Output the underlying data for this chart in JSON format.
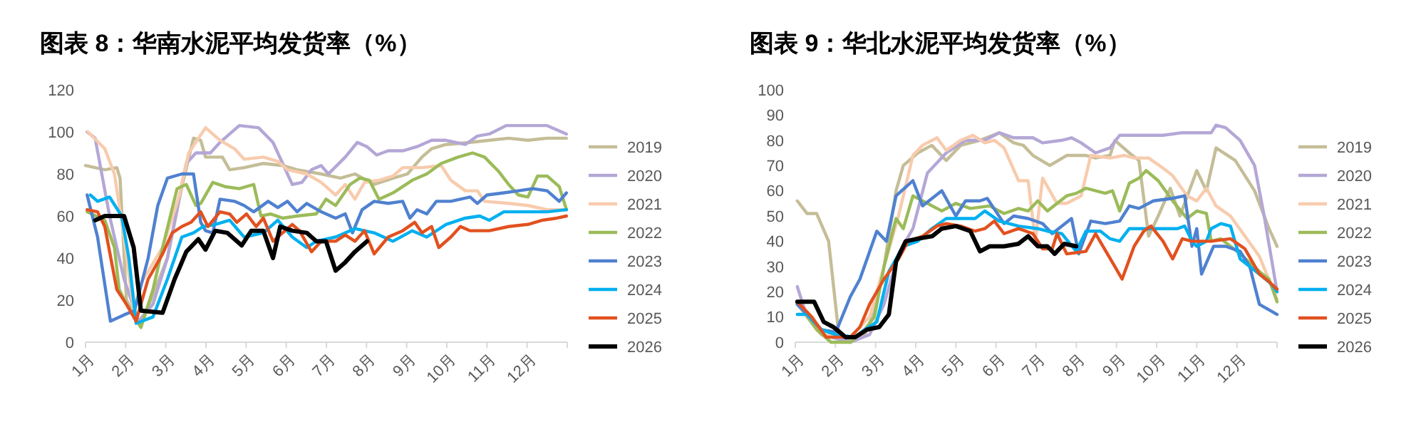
{
  "chart_data": [
    {
      "type": "line",
      "title": "图表 8：华南水泥平均发货率（%）",
      "xlim": [
        1,
        13
      ],
      "xticks": [
        {
          "value": 1,
          "label": "1月"
        },
        {
          "value": 2,
          "label": "2月"
        },
        {
          "value": 3,
          "label": "3月"
        },
        {
          "value": 4,
          "label": "4月"
        },
        {
          "value": 5,
          "label": "5月"
        },
        {
          "value": 6,
          "label": "6月"
        },
        {
          "value": 7,
          "label": "7月"
        },
        {
          "value": 8,
          "label": "8月"
        },
        {
          "value": 9,
          "label": "9月"
        },
        {
          "value": 10,
          "label": "10月"
        },
        {
          "value": 11,
          "label": "11月"
        },
        {
          "value": 12,
          "label": "12月"
        }
      ],
      "ylim": [
        0,
        120
      ],
      "yticks": [
        0,
        20,
        40,
        60,
        80,
        100,
        120
      ],
      "grid": false,
      "legend": "right",
      "marker": "none",
      "line_style": "solid",
      "series": [
        {
          "name": "2019",
          "color": "#c4bd97",
          "x": [
            1,
            1.48,
            1.78,
            1.86,
            2.02,
            2.38,
            3.04,
            3.4,
            3.69,
            3.87,
            3.99,
            4.41,
            4.59,
            4.95,
            5.43,
            5.91,
            6.27,
            6.87,
            7.35,
            7.71,
            8.19,
            8.66,
            9.02,
            9.38,
            9.62,
            9.98,
            10.58,
            11.06,
            11.54,
            12.02,
            12.5,
            12.98
          ],
          "values": [
            84,
            82,
            83,
            78,
            20,
            8,
            40,
            74,
            97,
            96,
            88,
            88,
            82,
            83,
            85,
            84,
            82,
            80,
            78,
            80,
            75,
            78,
            80,
            88,
            92,
            94,
            95,
            96,
            97,
            96,
            97,
            97
          ]
        },
        {
          "name": "2020",
          "color": "#b4a7d6",
          "x": [
            1.04,
            1.24,
            1.6,
            1.96,
            2.32,
            2.68,
            3.04,
            3.4,
            3.51,
            3.75,
            4.11,
            4.35,
            4.53,
            4.83,
            5.31,
            5.67,
            5.91,
            6.15,
            6.39,
            6.63,
            6.87,
            7.05,
            7.47,
            7.77,
            8.01,
            8.25,
            8.54,
            8.9,
            9.26,
            9.62,
            9.98,
            10.46,
            10.76,
            11.06,
            11.48,
            12.02,
            12.5,
            12.98
          ],
          "values": [
            100,
            97,
            60,
            30,
            10,
            18,
            40,
            75,
            85,
            90,
            90,
            95,
            98,
            103,
            102,
            95,
            85,
            75,
            76,
            82,
            84,
            80,
            88,
            95,
            93,
            89,
            91,
            91,
            93,
            96,
            96,
            94,
            98,
            99,
            103,
            103,
            103,
            99
          ]
        },
        {
          "name": "2021",
          "color": "#f8cbad",
          "x": [
            1.06,
            1.48,
            1.72,
            1.96,
            2.2,
            2.38,
            2.92,
            3.34,
            3.57,
            3.99,
            4.35,
            4.71,
            4.95,
            5.43,
            5.79,
            6.03,
            6.51,
            6.87,
            7.23,
            7.47,
            7.71,
            7.95,
            8.31,
            8.66,
            8.9,
            9.38,
            9.86,
            10.1,
            10.46,
            10.76,
            10.94,
            11.54,
            12.02,
            12.5,
            12.98
          ],
          "values": [
            100,
            92,
            80,
            50,
            15,
            28,
            45,
            70,
            90,
            102,
            96,
            92,
            87,
            88,
            86,
            82,
            80,
            76,
            70,
            75,
            68,
            76,
            77,
            79,
            83,
            83,
            84,
            77,
            72,
            72,
            67,
            66,
            65,
            63,
            63
          ]
        },
        {
          "name": "2022",
          "color": "#9bbb59",
          "x": [
            1.04,
            1.48,
            1.72,
            1.84,
            2.02,
            2.38,
            2.68,
            2.92,
            3.28,
            3.51,
            3.75,
            3.87,
            4.17,
            4.47,
            4.83,
            5.19,
            5.37,
            5.61,
            5.91,
            6.27,
            6.75,
            6.99,
            7.23,
            7.59,
            7.83,
            8.07,
            8.31,
            8.66,
            9.14,
            9.5,
            9.86,
            10.28,
            10.64,
            10.94,
            11.3,
            11.54,
            11.78,
            12.02,
            12.26,
            12.5,
            12.8,
            12.98
          ],
          "values": [
            62,
            58,
            45,
            25,
            18,
            7,
            25,
            45,
            73,
            75,
            65,
            66,
            76,
            74,
            73,
            75,
            60,
            61,
            59,
            60,
            61,
            68,
            65,
            75,
            78,
            77,
            68,
            71,
            77,
            80,
            85,
            88,
            90,
            88,
            81,
            75,
            70,
            69,
            79,
            79,
            74,
            63
          ]
        },
        {
          "name": "2023",
          "color": "#4f81d0",
          "x": [
            1.04,
            1.3,
            1.62,
            1.96,
            2.22,
            2.56,
            2.8,
            3.04,
            3.4,
            3.69,
            3.87,
            3.99,
            4.17,
            4.35,
            4.71,
            4.95,
            5.19,
            5.55,
            5.79,
            6.03,
            6.27,
            6.51,
            6.87,
            7.23,
            7.47,
            7.65,
            7.89,
            8.19,
            8.54,
            8.9,
            9.08,
            9.26,
            9.5,
            9.74,
            10.1,
            10.58,
            10.76,
            11,
            11.42,
            11.78,
            12.14,
            12.5,
            12.8,
            12.98
          ],
          "values": [
            70,
            50,
            10,
            13,
            15,
            40,
            65,
            78,
            80,
            80,
            57,
            53,
            52,
            68,
            67,
            65,
            62,
            67,
            64,
            67,
            62,
            66,
            62,
            59,
            61,
            52,
            63,
            67,
            66,
            67,
            59,
            63,
            61,
            67,
            67,
            69,
            66,
            70,
            71,
            72,
            73,
            72,
            67,
            71
          ]
        },
        {
          "name": "2024",
          "color": "#00b0f0",
          "x": [
            1.12,
            1.3,
            1.6,
            1.9,
            2.08,
            2.26,
            2.68,
            3.04,
            3.4,
            3.69,
            3.93,
            4.23,
            4.59,
            4.95,
            5.43,
            5.79,
            6.15,
            6.51,
            6.75,
            7.23,
            7.71,
            8.19,
            8.66,
            9.14,
            9.5,
            9.98,
            10.46,
            10.82,
            11.06,
            11.42,
            11.9,
            12.5,
            12.98
          ],
          "values": [
            70,
            67,
            69,
            60,
            40,
            9,
            12,
            30,
            50,
            52,
            55,
            56,
            58,
            50,
            52,
            58,
            50,
            45,
            48,
            50,
            54,
            52,
            48,
            53,
            50,
            56,
            59,
            60,
            58,
            62,
            62,
            62,
            63
          ]
        },
        {
          "name": "2025",
          "color": "#e2511f",
          "x": [
            1.04,
            1.3,
            1.48,
            1.78,
            2.02,
            2.26,
            2.56,
            2.92,
            3.16,
            3.4,
            3.63,
            3.87,
            4.05,
            4.35,
            4.59,
            4.77,
            5.01,
            5.25,
            5.43,
            5.67,
            5.91,
            6.15,
            6.33,
            6.63,
            6.87,
            7.23,
            7.47,
            7.71,
            7.95,
            8.19,
            8.54,
            8.9,
            9.2,
            9.38,
            9.62,
            9.8,
            10.1,
            10.34,
            10.58,
            11.06,
            11.54,
            12.02,
            12.38,
            12.74,
            12.98
          ],
          "values": [
            63,
            62,
            55,
            25,
            18,
            10,
            30,
            42,
            52,
            55,
            57,
            62,
            55,
            62,
            61,
            57,
            61,
            55,
            59,
            48,
            52,
            56,
            53,
            43,
            48,
            48,
            51,
            48,
            53,
            42,
            50,
            53,
            57,
            52,
            55,
            45,
            50,
            55,
            53,
            53,
            55,
            56,
            58,
            59,
            60
          ]
        },
        {
          "name": "2026",
          "color": "#000000",
          "x": [
            1.24,
            1.48,
            1.96,
            2.2,
            2.38,
            2.92,
            3.22,
            3.51,
            3.81,
            3.99,
            4.23,
            4.53,
            4.89,
            5.13,
            5.43,
            5.67,
            5.85,
            6.15,
            6.51,
            6.75,
            6.99,
            7.23,
            7.47,
            7.71,
            8.01
          ],
          "values": [
            58,
            60,
            60,
            45,
            15,
            14,
            30,
            43,
            49,
            44,
            53,
            52,
            46,
            53,
            53,
            40,
            55,
            53,
            52,
            48,
            48,
            34,
            38,
            43,
            48
          ]
        }
      ]
    },
    {
      "type": "line",
      "title": "图表 9：华北水泥平均发货率（%）",
      "xlim": [
        1,
        13
      ],
      "xticks": [
        {
          "value": 1,
          "label": "1月"
        },
        {
          "value": 2,
          "label": "2月"
        },
        {
          "value": 3,
          "label": "3月"
        },
        {
          "value": 4,
          "label": "4月"
        },
        {
          "value": 5,
          "label": "5月"
        },
        {
          "value": 6,
          "label": "6月"
        },
        {
          "value": 7,
          "label": "7月"
        },
        {
          "value": 8,
          "label": "8月"
        },
        {
          "value": 9,
          "label": "9月"
        },
        {
          "value": 10,
          "label": "10月"
        },
        {
          "value": 11,
          "label": "11月"
        },
        {
          "value": 12,
          "label": "12月"
        }
      ],
      "ylim": [
        0,
        100
      ],
      "yticks": [
        0,
        10,
        20,
        30,
        40,
        50,
        60,
        70,
        80,
        90,
        100
      ],
      "grid": false,
      "legend": "right",
      "marker": "none",
      "line_style": "solid",
      "series": [
        {
          "name": "2019",
          "color": "#c4bd97",
          "x": [
            1.05,
            1.29,
            1.53,
            1.83,
            2.07,
            2.37,
            2.73,
            2.97,
            3.21,
            3.51,
            3.69,
            4.05,
            4.4,
            4.76,
            5.12,
            5.6,
            6.08,
            6.44,
            6.68,
            6.92,
            7.34,
            7.76,
            8.24,
            8.48,
            8.84,
            8.96,
            9.32,
            9.56,
            9.8,
            10.04,
            10.34,
            10.58,
            11,
            11.24,
            11.48,
            11.96,
            12.44,
            12.8,
            13
          ],
          "values": [
            56,
            51,
            51,
            40,
            5,
            0,
            3,
            12,
            30,
            60,
            70,
            75,
            78,
            72,
            78,
            80,
            83,
            79,
            78,
            74,
            70,
            74,
            74,
            73,
            74,
            80,
            75,
            72,
            42,
            50,
            61,
            50,
            68,
            60,
            77,
            72,
            60,
            45,
            38
          ]
        },
        {
          "name": "2020",
          "color": "#b4a7d6",
          "x": [
            1.05,
            1.29,
            1.65,
            2.37,
            2.85,
            3.21,
            3.57,
            3.93,
            4.29,
            4.76,
            5.24,
            5.72,
            6.08,
            6.44,
            6.92,
            7.16,
            7.64,
            7.88,
            8.12,
            8.48,
            8.84,
            9.08,
            9.68,
            10.16,
            10.64,
            11.12,
            11.36,
            11.48,
            11.72,
            12.08,
            12.44,
            12.68,
            13
          ],
          "values": [
            22,
            10,
            3,
            0,
            3,
            15,
            35,
            45,
            67,
            75,
            80,
            80,
            83,
            81,
            81,
            79,
            80,
            81,
            79,
            75,
            77,
            82,
            82,
            82,
            83,
            83,
            83,
            86,
            85,
            80,
            70,
            50,
            20
          ]
        },
        {
          "name": "2021",
          "color": "#f8cbad",
          "x": [
            1.05,
            1.65,
            2.37,
            2.85,
            3.21,
            3.57,
            3.93,
            4.17,
            4.53,
            4.76,
            5.12,
            5.42,
            5.72,
            5.96,
            6.2,
            6.56,
            6.8,
            6.98,
            7.16,
            7.52,
            7.76,
            8.12,
            8.36,
            8.84,
            9.2,
            9.44,
            9.8,
            10.16,
            10.4,
            10.76,
            11,
            11.24,
            11.48,
            11.84,
            12.2,
            12.56,
            13
          ],
          "values": [
            15,
            3,
            2,
            10,
            30,
            50,
            74,
            78,
            81,
            76,
            80,
            82,
            79,
            80,
            77,
            64,
            64,
            40,
            65,
            55,
            55,
            58,
            74,
            73,
            74,
            73,
            73,
            69,
            66,
            58,
            56,
            61,
            54,
            50,
            42,
            34,
            17
          ]
        },
        {
          "name": "2022",
          "color": "#9bbb59",
          "x": [
            1.05,
            1.53,
            1.89,
            2.37,
            2.73,
            2.97,
            3.21,
            3.51,
            3.69,
            3.93,
            4.29,
            4.65,
            5,
            5.36,
            5.84,
            6.2,
            6.56,
            6.8,
            7.04,
            7.28,
            7.52,
            7.76,
            8,
            8.24,
            8.72,
            8.9,
            9.08,
            9.32,
            9.56,
            9.74,
            10.04,
            10.4,
            10.76,
            11,
            11.24,
            11.36,
            11.6,
            12.08,
            12.56,
            12.8,
            13
          ],
          "values": [
            16,
            5,
            0,
            0,
            5,
            10,
            30,
            49,
            45,
            58,
            55,
            52,
            55,
            53,
            54,
            51,
            53,
            52,
            56,
            52,
            55,
            58,
            59,
            61,
            59,
            60,
            52,
            63,
            65,
            68,
            64,
            56,
            49,
            52,
            51,
            40,
            41,
            35,
            28,
            25,
            16
          ]
        },
        {
          "name": "2023",
          "color": "#4f81d0",
          "x": [
            1.05,
            1.65,
            2.01,
            2.37,
            2.61,
            3.03,
            3.27,
            3.51,
            3.93,
            4.17,
            4.65,
            5,
            5.24,
            5.6,
            5.78,
            6.2,
            6.44,
            6.8,
            7.16,
            7.4,
            7.88,
            8.06,
            8.36,
            8.72,
            9.08,
            9.32,
            9.56,
            9.92,
            10.4,
            10.7,
            10.88,
            11,
            11.12,
            11.42,
            11.72,
            12.08,
            12.32,
            12.56,
            13
          ],
          "values": [
            15,
            5,
            4,
            18,
            25,
            44,
            40,
            58,
            64,
            54,
            60,
            50,
            56,
            56,
            57,
            47,
            50,
            49,
            47,
            43,
            49,
            35,
            48,
            47,
            48,
            54,
            53,
            56,
            57,
            58,
            38,
            45,
            27,
            38,
            38,
            36,
            30,
            15,
            11
          ]
        },
        {
          "name": "2024",
          "color": "#00b0f0",
          "x": [
            1.05,
            1.29,
            1.65,
            2.01,
            2.49,
            2.73,
            3.03,
            3.33,
            3.69,
            4.05,
            4.4,
            4.76,
            5.12,
            5.48,
            5.72,
            6.08,
            6.56,
            7.04,
            7.28,
            7.64,
            8,
            8.24,
            8.6,
            8.84,
            9.08,
            9.32,
            9.68,
            10.16,
            10.52,
            10.7,
            10.88,
            11,
            11.24,
            11.36,
            11.6,
            11.84,
            12.08,
            12.56,
            12.86,
            13
          ],
          "values": [
            11,
            11,
            5,
            3,
            2,
            5,
            8,
            28,
            38,
            40,
            45,
            49,
            49,
            49,
            52,
            48,
            46,
            45,
            44,
            43,
            36,
            44,
            44,
            41,
            40,
            45,
            45,
            45,
            45,
            46,
            40,
            38,
            40,
            45,
            47,
            46,
            33,
            27,
            23,
            20
          ]
        },
        {
          "name": "2025",
          "color": "#e2511f",
          "x": [
            1.05,
            1.41,
            1.77,
            2.37,
            2.61,
            2.85,
            3.21,
            3.57,
            3.81,
            4.17,
            4.53,
            4.76,
            5.12,
            5.48,
            5.72,
            5.96,
            6.2,
            6.56,
            6.92,
            7.16,
            7.4,
            7.52,
            7.76,
            8.24,
            8.48,
            8.96,
            9.14,
            9.44,
            9.68,
            9.86,
            10.16,
            10.4,
            10.64,
            10.88,
            11.36,
            11.84,
            12.2,
            12.56,
            12.8,
            13
          ],
          "values": [
            16,
            10,
            2,
            2,
            6,
            15,
            25,
            33,
            40,
            42,
            46,
            47,
            46,
            44,
            45,
            48,
            43,
            45,
            43,
            37,
            37,
            43,
            35,
            36,
            43,
            30,
            25,
            38,
            44,
            46,
            40,
            33,
            41,
            40,
            40,
            41,
            37,
            27,
            24,
            21
          ]
        },
        {
          "name": "2026",
          "color": "#000000",
          "x": [
            1.05,
            1.47,
            1.71,
            1.95,
            2.25,
            2.49,
            2.79,
            3.09,
            3.33,
            3.51,
            3.75,
            4.05,
            4.41,
            4.65,
            5,
            5.36,
            5.6,
            5.84,
            6.2,
            6.56,
            6.8,
            7.04,
            7.28,
            7.46,
            7.7,
            8
          ],
          "values": [
            16,
            16,
            8,
            6,
            2,
            2,
            5,
            6,
            11,
            32,
            40,
            41,
            42,
            45,
            46,
            44,
            36,
            38,
            38,
            39,
            42,
            38,
            38,
            35,
            39,
            38
          ]
        }
      ]
    }
  ]
}
